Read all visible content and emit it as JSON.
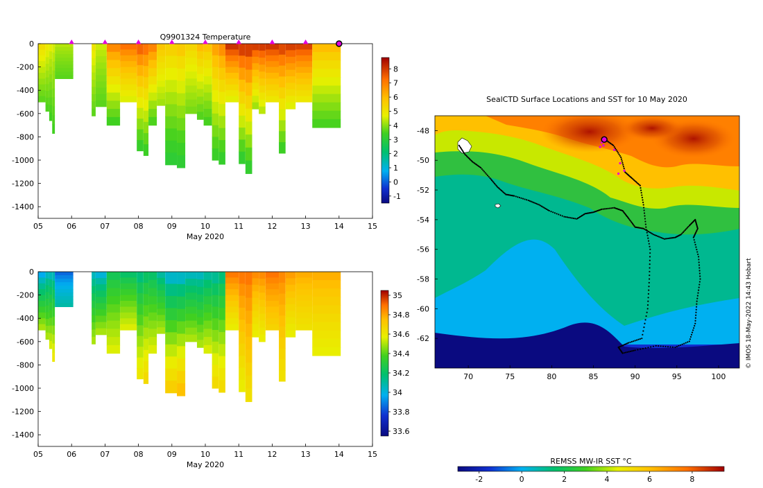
{
  "figure_title": "Q9901324  Temperature",
  "copyright": "© IMOS 18-May-2022 14:43 Hobart",
  "chart_data": [
    {
      "type": "heatmap",
      "name": "temperature-section",
      "title": "Q9901324  Temperature",
      "xlabel": "May 2020",
      "x_ticks": [
        "05",
        "06",
        "07",
        "08",
        "09",
        "10",
        "11",
        "12",
        "13",
        "14",
        "15"
      ],
      "xlim": [
        5,
        15
      ],
      "ylim": [
        -1500,
        0
      ],
      "y_ticks": [
        0,
        -200,
        -400,
        -600,
        -800,
        -1000,
        -1200,
        -1400
      ],
      "colorbar": {
        "min": -1.5,
        "max": 8.8,
        "ticks": [
          -1,
          0,
          1,
          2,
          3,
          4,
          5,
          6,
          7,
          8
        ]
      },
      "surface_markers_day": [
        6,
        7,
        8,
        9,
        10,
        11,
        12,
        13
      ],
      "current_profile_day": 14,
      "profiles": [
        {
          "start": 5.0,
          "end": 5.22,
          "max_depth": 500,
          "surface": 5.4,
          "bottom": 3.6
        },
        {
          "start": 5.22,
          "end": 5.33,
          "max_depth": 580,
          "surface": 5.0,
          "bottom": 3.5
        },
        {
          "start": 5.33,
          "end": 5.42,
          "max_depth": 660,
          "surface": 4.8,
          "bottom": 3.4
        },
        {
          "start": 5.42,
          "end": 5.5,
          "max_depth": 770,
          "surface": 4.7,
          "bottom": 3.4
        },
        {
          "start": 5.5,
          "end": 6.05,
          "max_depth": 300,
          "surface": 4.4,
          "bottom": 3.6
        },
        {
          "start": 6.6,
          "end": 6.72,
          "max_depth": 620,
          "surface": 5.2,
          "bottom": 3.6
        },
        {
          "start": 6.72,
          "end": 7.05,
          "max_depth": 540,
          "surface": 4.6,
          "bottom": 3.6
        },
        {
          "start": 7.05,
          "end": 7.45,
          "max_depth": 700,
          "surface": 7.3,
          "bottom": 3.3
        },
        {
          "start": 7.45,
          "end": 7.95,
          "max_depth": 500,
          "surface": 7.6,
          "bottom": 4.5
        },
        {
          "start": 7.95,
          "end": 8.15,
          "max_depth": 920,
          "surface": 8.0,
          "bottom": 3.1
        },
        {
          "start": 8.15,
          "end": 8.3,
          "max_depth": 960,
          "surface": 7.7,
          "bottom": 3.2
        },
        {
          "start": 8.3,
          "end": 8.55,
          "max_depth": 700,
          "surface": 7.4,
          "bottom": 3.4
        },
        {
          "start": 8.55,
          "end": 8.8,
          "max_depth": 530,
          "surface": 6.0,
          "bottom": 4.1
        },
        {
          "start": 8.8,
          "end": 9.15,
          "max_depth": 1040,
          "surface": 5.8,
          "bottom": 3.0
        },
        {
          "start": 9.15,
          "end": 9.4,
          "max_depth": 1065,
          "surface": 6.0,
          "bottom": 3.0
        },
        {
          "start": 9.4,
          "end": 9.75,
          "max_depth": 600,
          "surface": 5.6,
          "bottom": 3.8
        },
        {
          "start": 9.75,
          "end": 9.95,
          "max_depth": 650,
          "surface": 6.3,
          "bottom": 3.5
        },
        {
          "start": 9.95,
          "end": 10.2,
          "max_depth": 700,
          "surface": 6.1,
          "bottom": 3.4
        },
        {
          "start": 10.2,
          "end": 10.4,
          "max_depth": 1000,
          "surface": 6.8,
          "bottom": 3.2
        },
        {
          "start": 10.4,
          "end": 10.6,
          "max_depth": 1035,
          "surface": 7.2,
          "bottom": 3.1
        },
        {
          "start": 10.6,
          "end": 11.0,
          "max_depth": 500,
          "surface": 8.6,
          "bottom": 4.5
        },
        {
          "start": 11.0,
          "end": 11.2,
          "max_depth": 1030,
          "surface": 8.6,
          "bottom": 3.0
        },
        {
          "start": 11.2,
          "end": 11.4,
          "max_depth": 1115,
          "surface": 8.6,
          "bottom": 3.0
        },
        {
          "start": 11.4,
          "end": 11.6,
          "max_depth": 560,
          "surface": 8.5,
          "bottom": 4.0
        },
        {
          "start": 11.6,
          "end": 11.8,
          "max_depth": 600,
          "surface": 8.5,
          "bottom": 4.2
        },
        {
          "start": 11.8,
          "end": 12.2,
          "max_depth": 500,
          "surface": 8.5,
          "bottom": 4.8
        },
        {
          "start": 12.2,
          "end": 12.4,
          "max_depth": 940,
          "surface": 8.4,
          "bottom": 3.2
        },
        {
          "start": 12.4,
          "end": 12.7,
          "max_depth": 560,
          "surface": 8.4,
          "bottom": 4.5
        },
        {
          "start": 12.7,
          "end": 13.2,
          "max_depth": 500,
          "surface": 8.3,
          "bottom": 4.8
        },
        {
          "start": 13.2,
          "end": 14.05,
          "max_depth": 720,
          "surface": 6.3,
          "bottom": 3.4
        }
      ]
    },
    {
      "type": "heatmap",
      "name": "salinity-section",
      "xlabel": "May 2020",
      "x_ticks": [
        "05",
        "06",
        "07",
        "08",
        "09",
        "10",
        "11",
        "12",
        "13",
        "14",
        "15"
      ],
      "xlim": [
        5,
        15
      ],
      "ylim": [
        -1500,
        0
      ],
      "y_ticks": [
        0,
        -200,
        -400,
        -600,
        -800,
        -1000,
        -1200,
        -1400
      ],
      "colorbar": {
        "min": 33.55,
        "max": 35.05,
        "ticks": [
          "33.6",
          "33.8",
          "34",
          "34.2",
          "34.4",
          "34.6",
          "34.8",
          "35"
        ]
      },
      "profiles": [
        {
          "start": 5.0,
          "end": 5.22,
          "max_depth": 500,
          "surface": 33.8,
          "bottom": 34.4
        },
        {
          "start": 5.22,
          "end": 5.33,
          "max_depth": 580,
          "surface": 33.9,
          "bottom": 34.4
        },
        {
          "start": 5.33,
          "end": 5.42,
          "max_depth": 660,
          "surface": 33.9,
          "bottom": 34.45
        },
        {
          "start": 5.42,
          "end": 5.5,
          "max_depth": 770,
          "surface": 33.9,
          "bottom": 34.5
        },
        {
          "start": 5.5,
          "end": 6.05,
          "max_depth": 300,
          "surface": 33.75,
          "bottom": 34.0
        },
        {
          "start": 6.6,
          "end": 6.72,
          "max_depth": 620,
          "surface": 33.9,
          "bottom": 34.4
        },
        {
          "start": 6.72,
          "end": 7.05,
          "max_depth": 540,
          "surface": 33.85,
          "bottom": 34.4
        },
        {
          "start": 7.05,
          "end": 7.45,
          "max_depth": 700,
          "surface": 34.1,
          "bottom": 34.45
        },
        {
          "start": 7.45,
          "end": 7.95,
          "max_depth": 500,
          "surface": 34.05,
          "bottom": 34.45
        },
        {
          "start": 7.95,
          "end": 8.15,
          "max_depth": 920,
          "surface": 34.0,
          "bottom": 34.5
        },
        {
          "start": 8.15,
          "end": 8.3,
          "max_depth": 960,
          "surface": 34.05,
          "bottom": 34.55
        },
        {
          "start": 8.3,
          "end": 8.55,
          "max_depth": 700,
          "surface": 34.05,
          "bottom": 34.45
        },
        {
          "start": 8.55,
          "end": 8.8,
          "max_depth": 530,
          "surface": 33.95,
          "bottom": 34.4
        },
        {
          "start": 8.8,
          "end": 9.15,
          "max_depth": 1040,
          "surface": 33.85,
          "bottom": 34.6
        },
        {
          "start": 9.15,
          "end": 9.4,
          "max_depth": 1065,
          "surface": 33.85,
          "bottom": 34.65
        },
        {
          "start": 9.4,
          "end": 9.75,
          "max_depth": 600,
          "surface": 33.9,
          "bottom": 34.4
        },
        {
          "start": 9.75,
          "end": 9.95,
          "max_depth": 650,
          "surface": 33.9,
          "bottom": 34.4
        },
        {
          "start": 9.95,
          "end": 10.2,
          "max_depth": 700,
          "surface": 33.95,
          "bottom": 34.45
        },
        {
          "start": 10.2,
          "end": 10.4,
          "max_depth": 1000,
          "surface": 33.95,
          "bottom": 34.55
        },
        {
          "start": 10.4,
          "end": 10.6,
          "max_depth": 1035,
          "surface": 34.0,
          "bottom": 34.55
        },
        {
          "start": 10.6,
          "end": 11.0,
          "max_depth": 500,
          "surface": 34.85,
          "bottom": 34.45
        },
        {
          "start": 11.0,
          "end": 11.2,
          "max_depth": 1030,
          "surface": 34.85,
          "bottom": 34.45
        },
        {
          "start": 11.2,
          "end": 11.4,
          "max_depth": 1115,
          "surface": 34.85,
          "bottom": 34.5
        },
        {
          "start": 11.4,
          "end": 11.6,
          "max_depth": 560,
          "surface": 34.8,
          "bottom": 34.45
        },
        {
          "start": 11.6,
          "end": 11.8,
          "max_depth": 600,
          "surface": 34.8,
          "bottom": 34.45
        },
        {
          "start": 11.8,
          "end": 12.2,
          "max_depth": 500,
          "surface": 34.85,
          "bottom": 34.55
        },
        {
          "start": 12.2,
          "end": 12.4,
          "max_depth": 940,
          "surface": 34.8,
          "bottom": 34.5
        },
        {
          "start": 12.4,
          "end": 12.7,
          "max_depth": 560,
          "surface": 34.75,
          "bottom": 34.45
        },
        {
          "start": 12.7,
          "end": 13.2,
          "max_depth": 500,
          "surface": 34.7,
          "bottom": 34.5
        },
        {
          "start": 13.2,
          "end": 14.05,
          "max_depth": 720,
          "surface": 34.7,
          "bottom": 34.45
        }
      ]
    },
    {
      "type": "heatmap",
      "name": "sst-map",
      "title": "SealCTD Surface Locations and SST for 10 May 2020",
      "xlabel": "",
      "ylabel": "",
      "xlim": [
        66,
        102.5
      ],
      "ylim": [
        -64,
        -47
      ],
      "x_ticks": [
        70,
        75,
        80,
        85,
        90,
        95,
        100
      ],
      "y_ticks": [
        -48,
        -50,
        -52,
        -54,
        -56,
        -58,
        -60,
        -62
      ],
      "colorbar": {
        "label": "REMSS MW-IR SST °C",
        "min": -3,
        "max": 9.5,
        "ticks": [
          -2,
          0,
          2,
          4,
          6,
          8
        ]
      },
      "track_lonlat": [
        [
          68.9,
          -49.0
        ],
        [
          69.6,
          -49.6
        ],
        [
          70.5,
          -50.1
        ],
        [
          71.5,
          -50.5
        ],
        [
          72.6,
          -51.2
        ],
        [
          73.5,
          -51.8
        ],
        [
          74.5,
          -52.3
        ],
        [
          75.5,
          -52.4
        ],
        [
          77.2,
          -52.7
        ],
        [
          78.5,
          -53.0
        ],
        [
          79.7,
          -53.4
        ],
        [
          81.5,
          -53.8
        ],
        [
          83.0,
          -53.95
        ],
        [
          84.0,
          -53.6
        ],
        [
          85.0,
          -53.5
        ],
        [
          86.0,
          -53.3
        ],
        [
          87.5,
          -53.2
        ],
        [
          88.5,
          -53.4
        ],
        [
          89.2,
          -53.9
        ],
        [
          90.0,
          -54.5
        ],
        [
          91.0,
          -54.6
        ],
        [
          92.2,
          -55.0
        ],
        [
          93.5,
          -55.3
        ],
        [
          94.8,
          -55.2
        ],
        [
          95.5,
          -55.0
        ],
        [
          96.5,
          -54.4
        ],
        [
          97.2,
          -54.0
        ],
        [
          97.5,
          -54.6
        ],
        [
          97.0,
          -55.2
        ],
        [
          97.6,
          -56.5
        ],
        [
          97.8,
          -58.0
        ],
        [
          97.4,
          -59.5
        ],
        [
          97.2,
          -61.0
        ],
        [
          96.5,
          -62.2
        ],
        [
          94.8,
          -62.6
        ],
        [
          92.5,
          -62.5
        ],
        [
          90.0,
          -62.8
        ],
        [
          88.5,
          -63.0
        ],
        [
          88.0,
          -62.6
        ],
        [
          89.2,
          -62.3
        ],
        [
          90.8,
          -62.0
        ],
        [
          91.5,
          -60.0
        ],
        [
          91.7,
          -58.0
        ],
        [
          91.8,
          -56.0
        ],
        [
          91.3,
          -54.5
        ],
        [
          91.0,
          -53.0
        ],
        [
          90.6,
          -51.7
        ],
        [
          89.6,
          -51.2
        ],
        [
          88.8,
          -50.8
        ],
        [
          88.3,
          -49.8
        ],
        [
          87.4,
          -49.0
        ],
        [
          86.4,
          -48.6
        ]
      ],
      "surface_locations_lonlat": [
        [
          86.0,
          -48.8
        ],
        [
          85.8,
          -49.1
        ],
        [
          86.2,
          -49.0
        ],
        [
          87.5,
          -49.3
        ],
        [
          88.2,
          -50.2
        ],
        [
          88.0,
          -50.9
        ],
        [
          88.7,
          -50.7
        ]
      ],
      "latest_location": [
        86.3,
        -48.6
      ]
    }
  ]
}
